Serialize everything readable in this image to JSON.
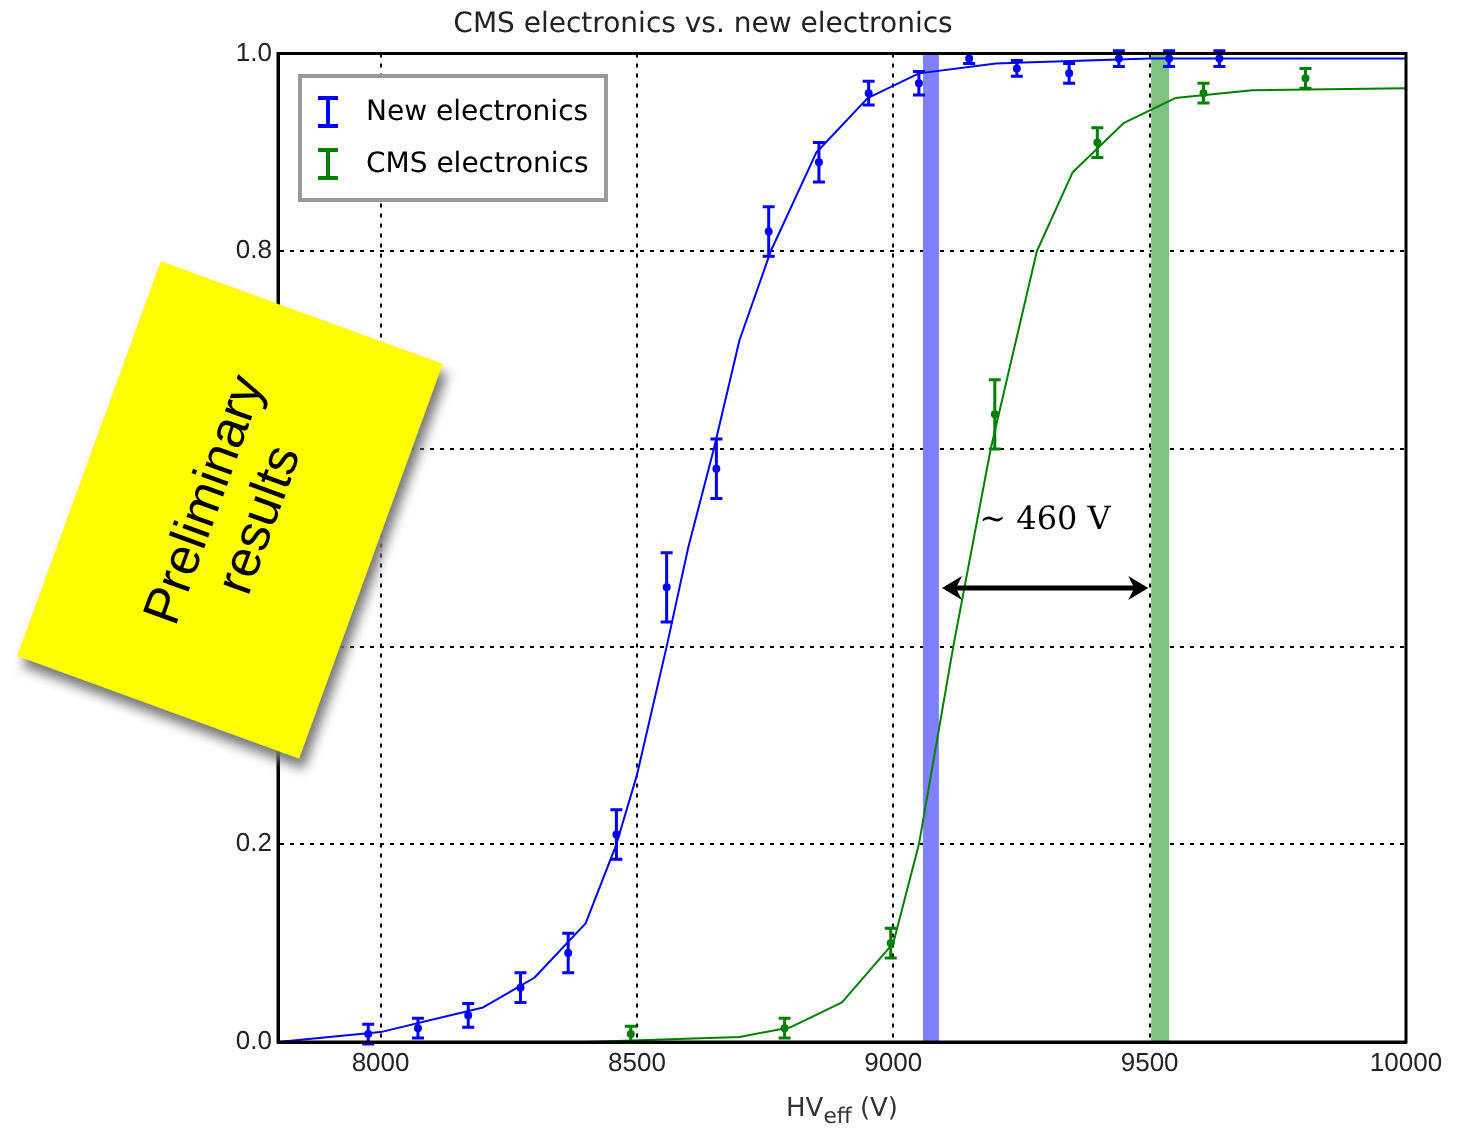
{
  "chart_data": {
    "type": "scatter",
    "title": "CMS electronics vs. new electronics",
    "xlabel": "HV$_{eff}$ (V)",
    "xlim": [
      7800,
      10000
    ],
    "xticks": [
      8000,
      8500,
      9000,
      9500,
      10000
    ],
    "ylim": [
      0,
      1
    ],
    "yticks": [
      {
        "value": 0,
        "label": "0.0"
      },
      {
        "value": 0.2,
        "label": "0.2"
      },
      {
        "value": 0.4,
        "label": null
      },
      {
        "value": 0.6,
        "label": null
      },
      {
        "value": 0.8,
        "label": "0.8"
      },
      {
        "value": 1,
        "label": "1.0"
      }
    ],
    "grid": true,
    "legend": "top left",
    "series": [
      {
        "name": "New electronics",
        "color": "#0000ff",
        "x": [
          7976,
          8073,
          8171,
          8273,
          8366,
          8460,
          8558,
          8655,
          8757,
          8855,
          8952,
          9050,
          9148,
          9241,
          9343,
          9440,
          9538,
          9636
        ],
        "values": [
          0.008,
          0.014,
          0.027,
          0.055,
          0.09,
          0.21,
          0.46,
          0.58,
          0.82,
          0.89,
          0.96,
          0.97,
          0.995,
          0.985,
          0.98,
          0.995,
          0.995,
          0.995
        ],
        "errors": [
          0.01,
          0.01,
          0.012,
          0.015,
          0.02,
          0.025,
          0.035,
          0.03,
          0.025,
          0.02,
          0.012,
          0.012,
          0.005,
          0.008,
          0.01,
          0.008,
          0.008,
          0.008
        ]
      },
      {
        "name": "CMS electronics",
        "color": "#008000",
        "x": [
          8488,
          8788,
          8995,
          9198,
          9398,
          9605,
          9804
        ],
        "values": [
          0.008,
          0.014,
          0.1,
          0.635,
          0.91,
          0.96,
          0.975
        ],
        "errors": [
          0.008,
          0.01,
          0.015,
          0.035,
          0.015,
          0.01,
          0.01
        ]
      },
      {
        "type": "line",
        "color": "#0000ff",
        "marker": "none",
        "x": [
          7800,
          8000,
          8200,
          8300,
          8400,
          8460,
          8500,
          8558,
          8600,
          8650,
          8700,
          8761,
          8850,
          8950,
          9050,
          9200,
          9500,
          10000
        ],
        "values": [
          0,
          0.01,
          0.035,
          0.065,
          0.12,
          0.2,
          0.27,
          0.4,
          0.5,
          0.6,
          0.71,
          0.8,
          0.9,
          0.955,
          0.98,
          0.99,
          0.995,
          0.995
        ]
      },
      {
        "type": "line",
        "color": "#008000",
        "marker": "none",
        "x": [
          8400,
          8700,
          8800,
          8900,
          9000,
          9050,
          9117,
          9190,
          9280,
          9350,
          9450,
          9550,
          9700,
          10000
        ],
        "values": [
          0,
          0.005,
          0.015,
          0.04,
          0.1,
          0.2,
          0.4,
          0.6,
          0.8,
          0.88,
          0.93,
          0.955,
          0.963,
          0.965
        ]
      }
    ],
    "bands": [
      {
        "axis": "x",
        "from": 9058,
        "to": 9089,
        "color": "#8080ff"
      },
      {
        "axis": "x",
        "from": 9503,
        "to": 9538,
        "color": "#80c080"
      }
    ],
    "annotations": [
      "∼ 460 V",
      "Preliminary results"
    ]
  }
}
